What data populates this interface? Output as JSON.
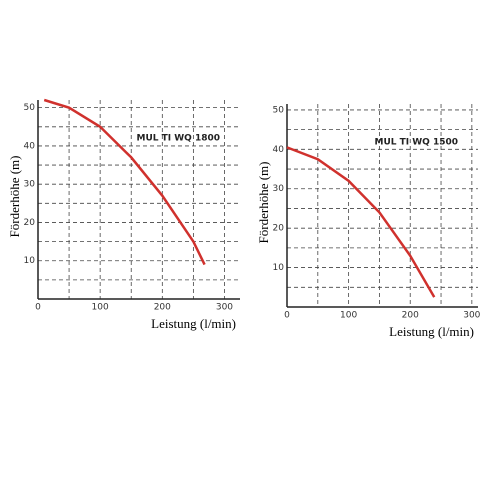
{
  "chart_data": [
    {
      "type": "line",
      "annotation": "MUL TI WQ 1800",
      "y_label": "Förderhöhe (m)",
      "x_label": "Leistung (l/min)",
      "x": [
        10,
        50,
        100,
        150,
        200,
        250,
        268
      ],
      "values": [
        52,
        50,
        45,
        37,
        27,
        15,
        9
      ],
      "color": "#d0312d",
      "xlim": [
        0,
        325
      ],
      "ylim": [
        0,
        52
      ],
      "xticks": [
        0,
        100,
        200,
        300
      ],
      "yticks": [
        10,
        20,
        30,
        40,
        50
      ],
      "x_minor_grid": [
        50,
        150,
        250
      ],
      "y_minor_grid": [
        5,
        15,
        25,
        35,
        45
      ],
      "grid": true
    },
    {
      "type": "line",
      "annotation": "MUL TI WQ 1500",
      "y_label": "Förderhöhe (m)",
      "x_label": "Leistung (l/min)",
      "x": [
        0,
        50,
        100,
        150,
        200,
        239
      ],
      "values": [
        40.5,
        37.5,
        32,
        24,
        13,
        2.5
      ],
      "color": "#d0312d",
      "xlim": [
        0,
        310
      ],
      "ylim": [
        0,
        51.5
      ],
      "xticks": [
        0,
        100,
        200,
        300
      ],
      "yticks": [
        10,
        20,
        30,
        40,
        50
      ],
      "x_minor_grid": [
        50,
        150,
        250
      ],
      "y_minor_grid": [
        5,
        15,
        25,
        35,
        45
      ],
      "grid": true
    }
  ]
}
